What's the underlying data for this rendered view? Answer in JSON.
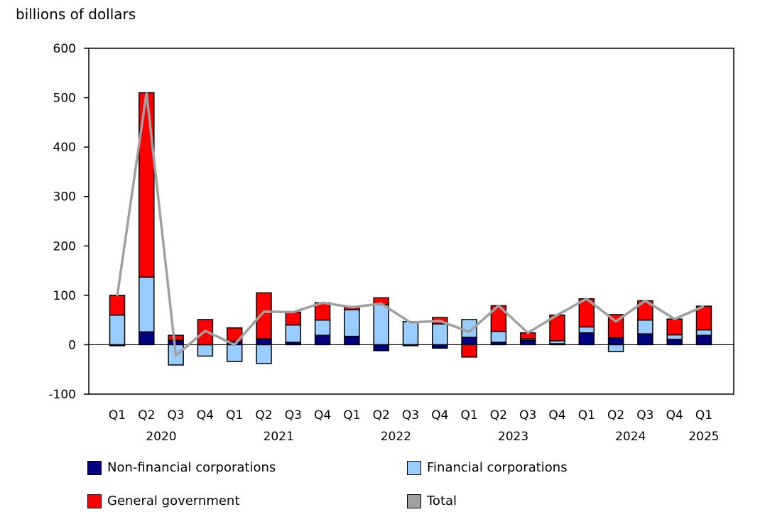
{
  "chart_data": {
    "type": "bar",
    "stacked": true,
    "ylabel": "billions of dollars",
    "ylim": [
      -100,
      600
    ],
    "yticks": [
      -100,
      0,
      100,
      200,
      300,
      400,
      500,
      600
    ],
    "grid": false,
    "legend_placement": "bottom",
    "categories": [
      "Q1",
      "Q2",
      "Q3",
      "Q4",
      "Q1",
      "Q2",
      "Q3",
      "Q4",
      "Q1",
      "Q2",
      "Q3",
      "Q4",
      "Q1",
      "Q2",
      "Q3",
      "Q4",
      "Q1",
      "Q2",
      "Q3",
      "Q4",
      "Q1"
    ],
    "years": [
      {
        "label": "2020",
        "start": 0,
        "end": 3
      },
      {
        "label": "2021",
        "start": 4,
        "end": 7
      },
      {
        "label": "2022",
        "start": 8,
        "end": 11
      },
      {
        "label": "2023",
        "start": 12,
        "end": 15
      },
      {
        "label": "2024",
        "start": 16,
        "end": 19
      },
      {
        "label": "2025",
        "start": 20,
        "end": 20
      }
    ],
    "series": [
      {
        "name": "Non-financial corporations",
        "kind": "bar",
        "color": "#000080",
        "values": [
          -2,
          26,
          9,
          0,
          7,
          12,
          5,
          19,
          17,
          -12,
          0,
          -7,
          15,
          5,
          9,
          2,
          24,
          14,
          22,
          11,
          19
        ]
      },
      {
        "name": "Financial corporations",
        "kind": "bar",
        "color": "#99ccff",
        "values": [
          60,
          111,
          -41,
          -23,
          -34,
          -38,
          35,
          31,
          54,
          81,
          47,
          42,
          36,
          22,
          3,
          6,
          12,
          -14,
          28,
          9,
          11
        ]
      },
      {
        "name": "General government",
        "kind": "bar",
        "color": "#ff0000",
        "values": [
          40,
          373,
          10,
          51,
          27,
          93,
          26,
          35,
          5,
          14,
          -2,
          13,
          -25,
          52,
          12,
          52,
          57,
          47,
          39,
          32,
          48
        ]
      },
      {
        "name": "Total",
        "kind": "line",
        "color": "#a0a0a0",
        "values": [
          98,
          510,
          -22,
          28,
          0,
          67,
          66,
          85,
          76,
          83,
          45,
          48,
          26,
          79,
          24,
          60,
          93,
          47,
          89,
          52,
          78
        ]
      }
    ]
  }
}
